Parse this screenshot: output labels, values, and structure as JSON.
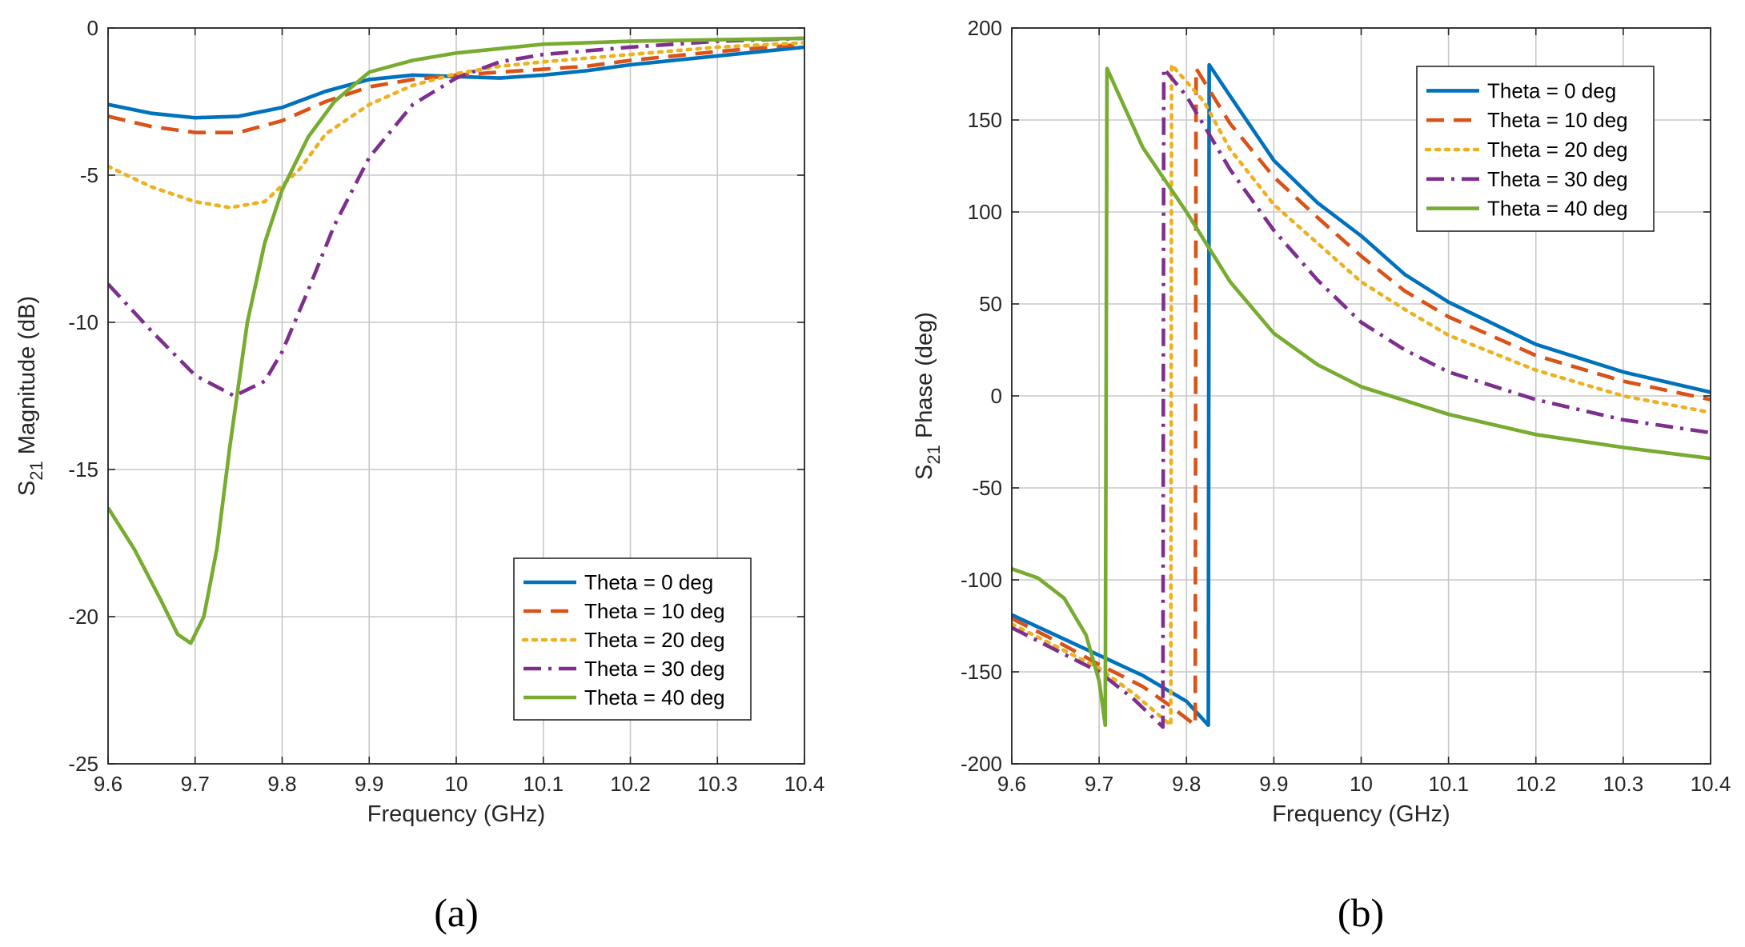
{
  "chart_data": [
    {
      "type": "line",
      "panel_label": "(a)",
      "title": "",
      "xlabel": "Frequency (GHz)",
      "ylabel_main": "S",
      "ylabel_sub": "21",
      "ylabel_rest": " Magnitude (dB)",
      "xlim": [
        9.6,
        10.4
      ],
      "ylim": [
        -25,
        0
      ],
      "xticks": [
        9.6,
        9.7,
        9.8,
        9.9,
        10,
        10.1,
        10.2,
        10.3,
        10.4
      ],
      "xtick_labels": [
        "9.6",
        "9.7",
        "9.8",
        "9.9",
        "10",
        "10.1",
        "10.2",
        "10.3",
        "10.4"
      ],
      "yticks": [
        -25,
        -20,
        -15,
        -10,
        -5,
        0
      ],
      "ytick_labels": [
        "-25",
        "-20",
        "-15",
        "-10",
        "-5",
        "0"
      ],
      "grid": true,
      "legend_position": "bottom-right",
      "series": [
        {
          "name": "Theta = 0 deg",
          "color": "#0072BD",
          "dash": "solid",
          "points": [
            [
              9.6,
              -2.6
            ],
            [
              9.65,
              -2.9
            ],
            [
              9.7,
              -3.05
            ],
            [
              9.75,
              -3.0
            ],
            [
              9.8,
              -2.7
            ],
            [
              9.85,
              -2.15
            ],
            [
              9.9,
              -1.75
            ],
            [
              9.95,
              -1.6
            ],
            [
              10.0,
              -1.65
            ],
            [
              10.05,
              -1.7
            ],
            [
              10.1,
              -1.6
            ],
            [
              10.15,
              -1.45
            ],
            [
              10.2,
              -1.25
            ],
            [
              10.3,
              -0.95
            ],
            [
              10.4,
              -0.65
            ]
          ]
        },
        {
          "name": "Theta = 10 deg",
          "color": "#D95319",
          "dash": "dash",
          "points": [
            [
              9.6,
              -3.0
            ],
            [
              9.65,
              -3.35
            ],
            [
              9.7,
              -3.55
            ],
            [
              9.75,
              -3.55
            ],
            [
              9.8,
              -3.15
            ],
            [
              9.85,
              -2.5
            ],
            [
              9.9,
              -2.0
            ],
            [
              9.95,
              -1.75
            ],
            [
              10.0,
              -1.6
            ],
            [
              10.05,
              -1.5
            ],
            [
              10.1,
              -1.4
            ],
            [
              10.15,
              -1.3
            ],
            [
              10.2,
              -1.1
            ],
            [
              10.3,
              -0.8
            ],
            [
              10.4,
              -0.55
            ]
          ]
        },
        {
          "name": "Theta = 20 deg",
          "color": "#EDB120",
          "dash": "dot",
          "points": [
            [
              9.6,
              -4.7
            ],
            [
              9.65,
              -5.4
            ],
            [
              9.7,
              -5.9
            ],
            [
              9.74,
              -6.1
            ],
            [
              9.78,
              -5.9
            ],
            [
              9.82,
              -4.8
            ],
            [
              9.85,
              -3.6
            ],
            [
              9.9,
              -2.6
            ],
            [
              9.95,
              -1.95
            ],
            [
              10.0,
              -1.55
            ],
            [
              10.05,
              -1.3
            ],
            [
              10.1,
              -1.15
            ],
            [
              10.2,
              -0.9
            ],
            [
              10.3,
              -0.65
            ],
            [
              10.4,
              -0.5
            ]
          ]
        },
        {
          "name": "Theta = 30 deg",
          "color": "#7E2F8E",
          "dash": "dashdot",
          "points": [
            [
              9.6,
              -8.7
            ],
            [
              9.65,
              -10.3
            ],
            [
              9.7,
              -11.8
            ],
            [
              9.745,
              -12.5
            ],
            [
              9.78,
              -12.0
            ],
            [
              9.8,
              -11.0
            ],
            [
              9.83,
              -8.9
            ],
            [
              9.86,
              -6.7
            ],
            [
              9.9,
              -4.4
            ],
            [
              9.95,
              -2.6
            ],
            [
              10.0,
              -1.7
            ],
            [
              10.05,
              -1.15
            ],
            [
              10.1,
              -0.9
            ],
            [
              10.2,
              -0.65
            ],
            [
              10.3,
              -0.45
            ],
            [
              10.4,
              -0.35
            ]
          ]
        },
        {
          "name": "Theta = 40 deg",
          "color": "#77AC30",
          "dash": "solid",
          "points": [
            [
              9.6,
              -16.3
            ],
            [
              9.63,
              -17.7
            ],
            [
              9.66,
              -19.4
            ],
            [
              9.68,
              -20.6
            ],
            [
              9.695,
              -20.9
            ],
            [
              9.71,
              -20.0
            ],
            [
              9.725,
              -17.7
            ],
            [
              9.74,
              -14.2
            ],
            [
              9.76,
              -10.0
            ],
            [
              9.78,
              -7.3
            ],
            [
              9.8,
              -5.5
            ],
            [
              9.83,
              -3.7
            ],
            [
              9.86,
              -2.5
            ],
            [
              9.9,
              -1.5
            ],
            [
              9.95,
              -1.1
            ],
            [
              10.0,
              -0.85
            ],
            [
              10.1,
              -0.55
            ],
            [
              10.2,
              -0.45
            ],
            [
              10.3,
              -0.4
            ],
            [
              10.4,
              -0.35
            ]
          ]
        }
      ]
    },
    {
      "type": "line",
      "panel_label": "(b)",
      "title": "",
      "xlabel": "Frequency (GHz)",
      "ylabel_main": "S",
      "ylabel_sub": "21",
      "ylabel_rest": " Phase (deg)",
      "xlim": [
        9.6,
        10.4
      ],
      "ylim": [
        -200,
        200
      ],
      "xticks": [
        9.6,
        9.7,
        9.8,
        9.9,
        10,
        10.1,
        10.2,
        10.3,
        10.4
      ],
      "xtick_labels": [
        "9.6",
        "9.7",
        "9.8",
        "9.9",
        "10",
        "10.1",
        "10.2",
        "10.3",
        "10.4"
      ],
      "yticks": [
        -200,
        -150,
        -100,
        -50,
        0,
        50,
        100,
        150,
        200
      ],
      "ytick_labels": [
        "-200",
        "-150",
        "-100",
        "-50",
        "0",
        "50",
        "100",
        "150",
        "200"
      ],
      "grid": true,
      "legend_position": "top-right",
      "series": [
        {
          "name": "Theta = 0 deg",
          "color": "#0072BD",
          "dash": "solid",
          "points": [
            [
              9.6,
              -119
            ],
            [
              9.65,
              -130
            ],
            [
              9.7,
              -141
            ],
            [
              9.75,
              -152
            ],
            [
              9.8,
              -166
            ],
            [
              9.825,
              -179
            ],
            [
              9.826,
              180
            ],
            [
              9.85,
              163
            ],
            [
              9.9,
              128
            ],
            [
              9.95,
              105
            ],
            [
              10.0,
              87
            ],
            [
              10.05,
              66
            ],
            [
              10.1,
              51
            ],
            [
              10.2,
              28
            ],
            [
              10.3,
              13
            ],
            [
              10.4,
              2
            ]
          ]
        },
        {
          "name": "Theta = 10 deg",
          "color": "#D95319",
          "dash": "dash",
          "points": [
            [
              9.6,
              -121
            ],
            [
              9.65,
              -133
            ],
            [
              9.7,
              -146
            ],
            [
              9.75,
              -158
            ],
            [
              9.78,
              -168
            ],
            [
              9.81,
              -179
            ],
            [
              9.811,
              178
            ],
            [
              9.85,
              148
            ],
            [
              9.9,
              119
            ],
            [
              9.95,
              97
            ],
            [
              10.0,
              76
            ],
            [
              10.05,
              57
            ],
            [
              10.1,
              43
            ],
            [
              10.2,
              22
            ],
            [
              10.3,
              8
            ],
            [
              10.4,
              -2
            ]
          ]
        },
        {
          "name": "Theta = 20 deg",
          "color": "#EDB120",
          "dash": "dot",
          "points": [
            [
              9.6,
              -124
            ],
            [
              9.65,
              -136
            ],
            [
              9.7,
              -148
            ],
            [
              9.74,
              -162
            ],
            [
              9.782,
              -179
            ],
            [
              9.783,
              180
            ],
            [
              9.82,
              160
            ],
            [
              9.85,
              134
            ],
            [
              9.9,
              104
            ],
            [
              9.95,
              83
            ],
            [
              10.0,
              62
            ],
            [
              10.05,
              47
            ],
            [
              10.1,
              33
            ],
            [
              10.2,
              14
            ],
            [
              10.3,
              0
            ],
            [
              10.4,
              -9
            ]
          ]
        },
        {
          "name": "Theta = 30 deg",
          "color": "#7E2F8E",
          "dash": "dashdot",
          "points": [
            [
              9.6,
              -126
            ],
            [
              9.65,
              -138
            ],
            [
              9.7,
              -150
            ],
            [
              9.74,
              -165
            ],
            [
              9.773,
              -180
            ],
            [
              9.774,
              178
            ],
            [
              9.8,
              163
            ],
            [
              9.85,
              123
            ],
            [
              9.9,
              90
            ],
            [
              9.95,
              63
            ],
            [
              10.0,
              40
            ],
            [
              10.05,
              25
            ],
            [
              10.1,
              13
            ],
            [
              10.2,
              -2
            ],
            [
              10.3,
              -13
            ],
            [
              10.4,
              -20
            ]
          ]
        },
        {
          "name": "Theta = 40 deg",
          "color": "#77AC30",
          "dash": "solid",
          "points": [
            [
              9.6,
              -94
            ],
            [
              9.63,
              -99
            ],
            [
              9.66,
              -110
            ],
            [
              9.685,
              -130
            ],
            [
              9.7,
              -155
            ],
            [
              9.707,
              -179
            ],
            [
              9.709,
              178
            ],
            [
              9.75,
              135
            ],
            [
              9.8,
              100
            ],
            [
              9.85,
              62
            ],
            [
              9.9,
              34
            ],
            [
              9.95,
              17
            ],
            [
              10.0,
              5
            ],
            [
              10.1,
              -10
            ],
            [
              10.2,
              -21
            ],
            [
              10.3,
              -28
            ],
            [
              10.4,
              -34
            ]
          ]
        }
      ]
    }
  ]
}
